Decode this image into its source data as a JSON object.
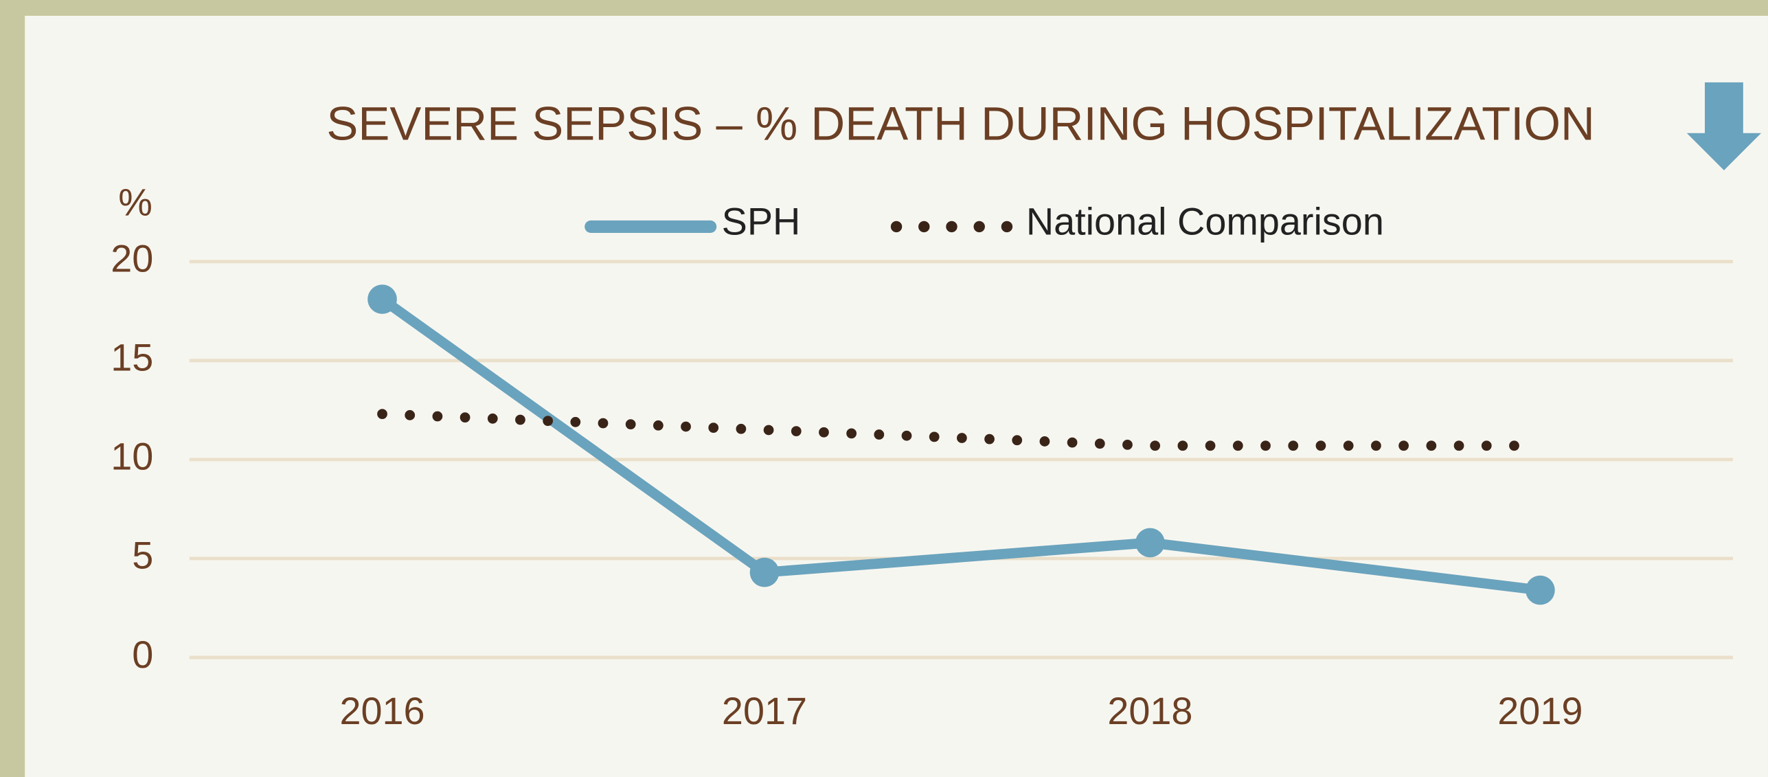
{
  "chart_data": {
    "type": "line",
    "title": "SEVERE SEPSIS – % DEATH DURING HOSPITALIZATION",
    "y_label": "%",
    "categories": [
      "2016",
      "2017",
      "2018",
      "2019"
    ],
    "series": [
      {
        "name": "SPH",
        "color": "#6aa3bd",
        "style": "solid",
        "markers": true,
        "values": [
          18.1,
          4.3,
          5.8,
          3.4
        ]
      },
      {
        "name": "National Comparison",
        "color": "#3a2418",
        "style": "dotted",
        "markers": false,
        "values": [
          12.3,
          11.5,
          10.7,
          10.7
        ]
      }
    ],
    "ylim": [
      0,
      20
    ],
    "yticks": [
      0,
      5,
      10,
      15,
      20
    ],
    "grid": true
  }
}
